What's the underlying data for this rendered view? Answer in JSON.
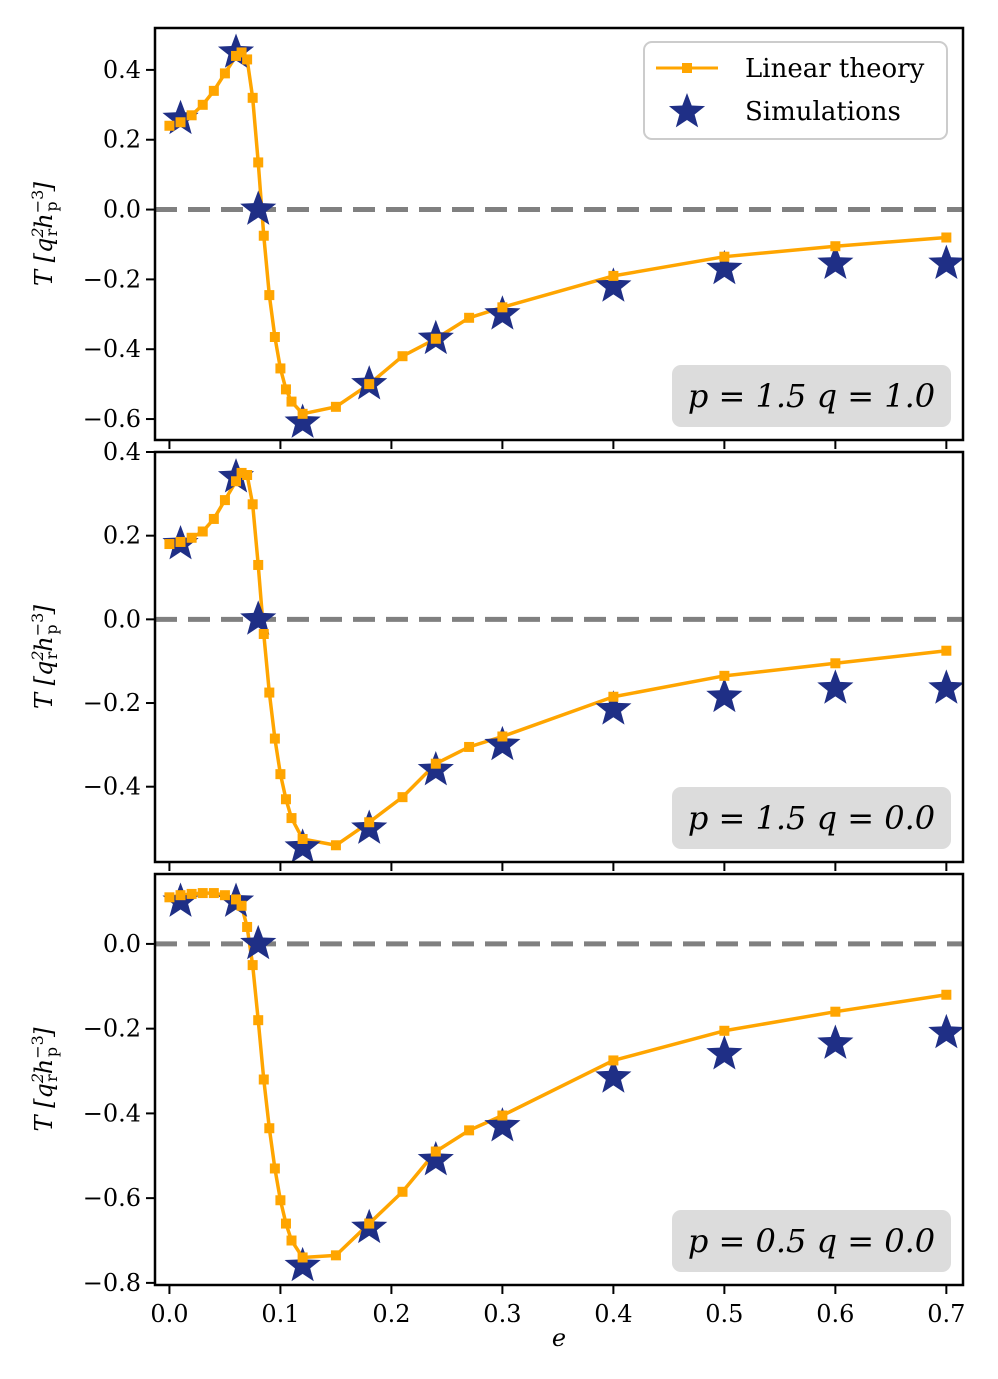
{
  "chart_data": [
    {
      "type": "line",
      "annotation": "p = 1.5  q = 1.0",
      "xlabel": "",
      "ylabel": "T [q_r^2 h_p^-3]",
      "xlim": [
        -0.013,
        0.715
      ],
      "ylim": [
        -0.66,
        0.52
      ],
      "yticks": [
        0.4,
        0.2,
        0.0,
        -0.2,
        -0.4,
        -0.6
      ],
      "ytick_labels": [
        "0.4",
        "0.2",
        "0.0",
        "−0.2",
        "−0.4",
        "−0.6"
      ],
      "reference_line_y": 0.0,
      "series": [
        {
          "name": "Linear theory",
          "x": [
            0.0,
            0.01,
            0.02,
            0.03,
            0.04,
            0.05,
            0.06,
            0.065,
            0.07,
            0.075,
            0.08,
            0.085,
            0.09,
            0.095,
            0.1,
            0.105,
            0.11,
            0.12,
            0.15,
            0.18,
            0.21,
            0.24,
            0.27,
            0.3,
            0.4,
            0.5,
            0.6,
            0.7
          ],
          "y": [
            0.24,
            0.25,
            0.27,
            0.3,
            0.34,
            0.39,
            0.44,
            0.45,
            0.43,
            0.32,
            0.135,
            -0.075,
            -0.245,
            -0.365,
            -0.455,
            -0.515,
            -0.55,
            -0.585,
            -0.565,
            -0.5,
            -0.42,
            -0.37,
            -0.31,
            -0.28,
            -0.19,
            -0.135,
            -0.105,
            -0.08
          ]
        },
        {
          "name": "Simulations",
          "x": [
            0.01,
            0.06,
            0.08,
            0.12,
            0.18,
            0.24,
            0.3,
            0.4,
            0.5,
            0.6,
            0.7
          ],
          "y": [
            0.26,
            0.45,
            0.0,
            -0.61,
            -0.5,
            -0.37,
            -0.3,
            -0.22,
            -0.17,
            -0.155,
            -0.155
          ]
        }
      ]
    },
    {
      "type": "line",
      "annotation": "p = 1.5  q = 0.0",
      "xlabel": "",
      "ylabel": "T [q_r^2 h_p^-3]",
      "xlim": [
        -0.013,
        0.715
      ],
      "ylim": [
        -0.58,
        0.4
      ],
      "yticks": [
        0.4,
        0.2,
        0.0,
        -0.2,
        -0.4
      ],
      "ytick_labels": [
        "0.4",
        "0.2",
        "0.0",
        "−0.2",
        "−0.4"
      ],
      "reference_line_y": 0.0,
      "series": [
        {
          "name": "Linear theory",
          "x": [
            0.0,
            0.01,
            0.02,
            0.03,
            0.04,
            0.05,
            0.06,
            0.065,
            0.07,
            0.075,
            0.08,
            0.085,
            0.09,
            0.095,
            0.1,
            0.105,
            0.11,
            0.12,
            0.15,
            0.18,
            0.21,
            0.24,
            0.27,
            0.3,
            0.4,
            0.5,
            0.6,
            0.7
          ],
          "y": [
            0.18,
            0.185,
            0.195,
            0.21,
            0.24,
            0.285,
            0.33,
            0.35,
            0.345,
            0.275,
            0.13,
            -0.035,
            -0.175,
            -0.285,
            -0.37,
            -0.43,
            -0.475,
            -0.525,
            -0.54,
            -0.485,
            -0.425,
            -0.345,
            -0.305,
            -0.28,
            -0.185,
            -0.135,
            -0.105,
            -0.075
          ]
        },
        {
          "name": "Simulations",
          "x": [
            0.01,
            0.06,
            0.08,
            0.12,
            0.18,
            0.24,
            0.3,
            0.4,
            0.5,
            0.6,
            0.7
          ],
          "y": [
            0.18,
            0.34,
            0.0,
            -0.545,
            -0.5,
            -0.36,
            -0.3,
            -0.215,
            -0.185,
            -0.165,
            -0.165
          ]
        }
      ]
    },
    {
      "type": "line",
      "annotation": "p = 0.5  q = 0.0",
      "xlabel": "e",
      "ylabel": "T [q_r^2 h_p^-3]",
      "xlim": [
        -0.013,
        0.715
      ],
      "ylim": [
        -0.805,
        0.165
      ],
      "yticks": [
        0.0,
        -0.2,
        -0.4,
        -0.6,
        -0.8
      ],
      "ytick_labels": [
        "0.0",
        "−0.2",
        "−0.4",
        "−0.6",
        "−0.8"
      ],
      "xticks": [
        0.0,
        0.1,
        0.2,
        0.3,
        0.4,
        0.5,
        0.6,
        0.7
      ],
      "xtick_labels": [
        "0.0",
        "0.1",
        "0.2",
        "0.3",
        "0.4",
        "0.5",
        "0.6",
        "0.7"
      ],
      "reference_line_y": 0.0,
      "series": [
        {
          "name": "Linear theory",
          "x": [
            0.0,
            0.01,
            0.02,
            0.03,
            0.04,
            0.05,
            0.06,
            0.065,
            0.07,
            0.075,
            0.08,
            0.085,
            0.09,
            0.095,
            0.1,
            0.105,
            0.11,
            0.12,
            0.15,
            0.18,
            0.21,
            0.24,
            0.27,
            0.3,
            0.4,
            0.5,
            0.6,
            0.7
          ],
          "y": [
            0.11,
            0.115,
            0.118,
            0.12,
            0.12,
            0.115,
            0.105,
            0.09,
            0.04,
            -0.05,
            -0.18,
            -0.32,
            -0.435,
            -0.53,
            -0.605,
            -0.66,
            -0.7,
            -0.74,
            -0.735,
            -0.66,
            -0.585,
            -0.49,
            -0.44,
            -0.405,
            -0.275,
            -0.205,
            -0.16,
            -0.12
          ]
        },
        {
          "name": "Simulations",
          "x": [
            0.01,
            0.06,
            0.08,
            0.12,
            0.18,
            0.24,
            0.3,
            0.4,
            0.5,
            0.6,
            0.7
          ],
          "y": [
            0.1,
            0.1,
            0.0,
            -0.76,
            -0.67,
            -0.51,
            -0.43,
            -0.315,
            -0.26,
            -0.235,
            -0.21
          ]
        }
      ]
    }
  ],
  "legend": {
    "placement": "top-right of top panel",
    "entries": [
      {
        "label": "Linear theory",
        "marker": "square-line"
      },
      {
        "label": "Simulations",
        "marker": "star"
      }
    ]
  },
  "colors": {
    "linear_theory": "#FFA500",
    "simulations": "#1F2F86",
    "reference_line": "#808080",
    "annotation_box": "#DCDCDC"
  }
}
